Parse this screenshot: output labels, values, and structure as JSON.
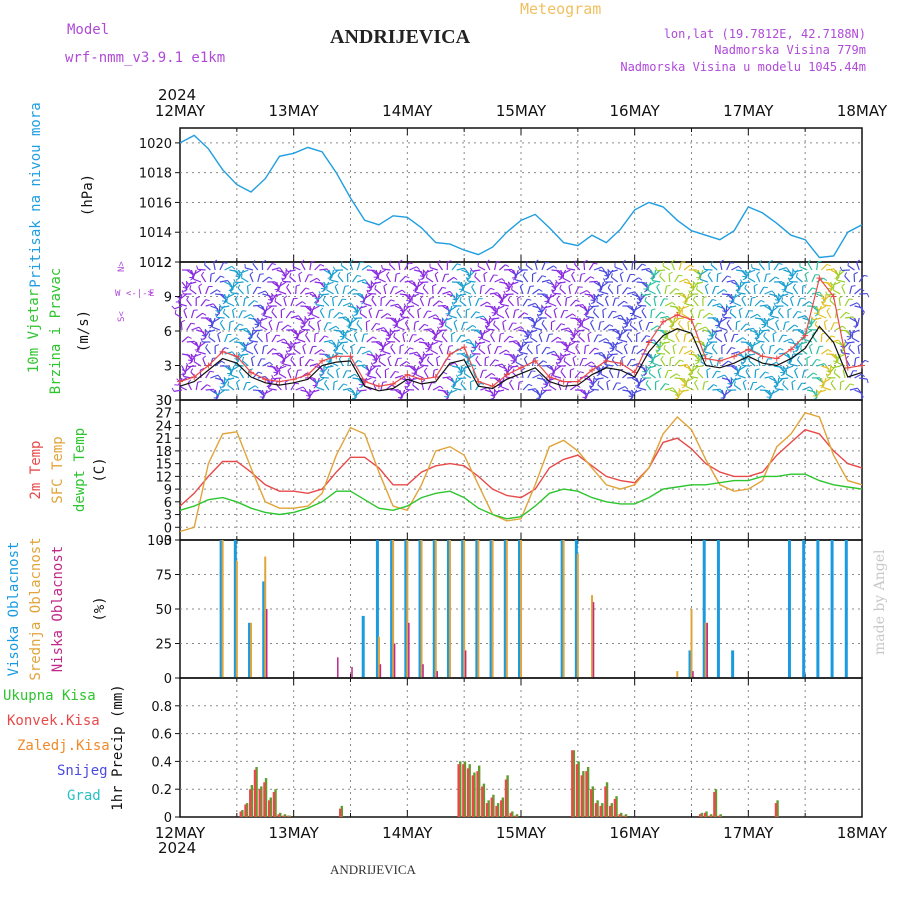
{
  "header": {
    "model_label": "Model",
    "model_name": "wrf-nmm_v3.9.1 e1km",
    "title": "ANDRIJEVICA",
    "subtitle": "Meteogram",
    "location": "lon,lat (19.7812E, 42.7188N)",
    "elevation": "Nadmorska Visina 779m",
    "model_elevation": "Nadmorska Visina u modelu 1045.44m",
    "watermark": "made by Angel"
  },
  "footer": {
    "station": "ANDRIJEVICA"
  },
  "time_axis": {
    "year": "2024",
    "days": [
      "12MAY",
      "13MAY",
      "14MAY",
      "15MAY",
      "16MAY",
      "17MAY",
      "18MAY"
    ]
  },
  "colors": {
    "pressure": "#1f9ee0",
    "temp_2m": "#e84a4a",
    "temp_sfc": "#e0a43a",
    "temp_dew": "#2ec52e",
    "cloud_high": "#1a9be0",
    "cloud_mid": "#e0a43a",
    "cloud_low": "#c0288a",
    "precip_total": "#5c9e2e",
    "precip_conv": "#e84a4a",
    "wind_speed": "#111111",
    "wind_gust": "#e84a4a"
  },
  "chart_data": [
    {
      "id": "pressure",
      "type": "line",
      "ylabel": [
        "Pritisak na nivou mora",
        "(hPa)"
      ],
      "ylim": [
        1012,
        1021
      ],
      "yticks": [
        1012,
        1014,
        1016,
        1018,
        1020
      ],
      "grid": true,
      "x_hours": [
        0,
        3,
        6,
        9,
        12,
        15,
        18,
        21,
        24,
        27,
        30,
        33,
        36,
        39,
        42,
        45,
        48,
        51,
        54,
        57,
        60,
        63,
        66,
        69,
        72,
        75,
        78,
        81,
        84,
        87,
        90,
        93,
        96,
        99,
        102,
        105,
        108,
        111,
        114,
        117,
        120,
        123,
        126,
        129,
        132,
        135,
        138,
        141,
        144
      ],
      "series": [
        {
          "name": "Pritisak na nivou mora",
          "values": [
            1020.0,
            1020.5,
            1019.6,
            1018.2,
            1017.2,
            1016.7,
            1017.6,
            1019.1,
            1019.3,
            1019.7,
            1019.4,
            1018.0,
            1016.3,
            1014.8,
            1014.5,
            1015.1,
            1015.0,
            1014.3,
            1013.3,
            1013.2,
            1012.8,
            1012.5,
            1013.0,
            1014.0,
            1014.8,
            1015.2,
            1014.3,
            1013.3,
            1013.1,
            1013.8,
            1013.3,
            1014.2,
            1015.5,
            1016.0,
            1015.7,
            1014.8,
            1014.1,
            1013.8,
            1013.5,
            1014.1,
            1015.7,
            1015.3,
            1014.6,
            1013.8,
            1013.5,
            1012.3,
            1012.4,
            1014.0,
            1014.5
          ]
        }
      ]
    },
    {
      "id": "wind",
      "type": "line",
      "ylabel": [
        "10m Vjetar",
        "Brzina i Pravac",
        "(m/s)"
      ],
      "ylim": [
        0,
        12
      ],
      "yticks": [
        0,
        3,
        6,
        9,
        12
      ],
      "grid": true,
      "x_hours": [
        0,
        3,
        6,
        9,
        12,
        15,
        18,
        21,
        24,
        27,
        30,
        33,
        36,
        39,
        42,
        45,
        48,
        51,
        54,
        57,
        60,
        63,
        66,
        69,
        72,
        75,
        78,
        81,
        84,
        87,
        90,
        93,
        96,
        99,
        102,
        105,
        108,
        111,
        114,
        117,
        120,
        123,
        126,
        129,
        132,
        135,
        138,
        141,
        144
      ],
      "series": [
        {
          "name": "speed",
          "values": [
            1.2,
            1.6,
            2.6,
            3.6,
            3.2,
            2.0,
            1.5,
            1.3,
            1.5,
            1.8,
            3.0,
            3.3,
            3.4,
            1.2,
            0.8,
            1.0,
            1.8,
            1.4,
            1.6,
            3.2,
            3.5,
            1.2,
            1.0,
            1.8,
            2.3,
            2.8,
            1.6,
            1.2,
            1.3,
            2.2,
            2.8,
            2.6,
            2.0,
            4.2,
            5.6,
            6.2,
            5.8,
            3.0,
            2.8,
            3.2,
            3.8,
            3.2,
            3.0,
            3.6,
            4.5,
            6.4,
            5.0,
            2.0,
            2.4
          ]
        },
        {
          "name": "gust",
          "values": [
            1.6,
            2.0,
            3.0,
            4.2,
            3.8,
            2.4,
            1.8,
            1.6,
            1.8,
            2.2,
            3.4,
            3.8,
            3.8,
            1.6,
            1.2,
            1.4,
            2.2,
            1.8,
            2.0,
            4.0,
            4.6,
            1.6,
            1.2,
            2.2,
            2.8,
            3.4,
            2.0,
            1.6,
            1.6,
            2.6,
            3.4,
            3.2,
            2.4,
            5.0,
            6.8,
            7.4,
            7.0,
            3.6,
            3.4,
            3.8,
            4.4,
            3.8,
            3.6,
            4.4,
            5.6,
            10.6,
            9.0,
            2.8,
            3.0
          ]
        }
      ]
    },
    {
      "id": "temperature",
      "type": "line",
      "ylabel": [
        "2m Temp",
        "SFC Temp",
        "dewpt Temp",
        "(C)"
      ],
      "ylim": [
        -3,
        30
      ],
      "yticks": [
        -3,
        0,
        3,
        6,
        9,
        12,
        15,
        18,
        21,
        24,
        27,
        30
      ],
      "grid": true,
      "x_hours": [
        0,
        3,
        6,
        9,
        12,
        15,
        18,
        21,
        24,
        27,
        30,
        33,
        36,
        39,
        42,
        45,
        48,
        51,
        54,
        57,
        60,
        63,
        66,
        69,
        72,
        75,
        78,
        81,
        84,
        87,
        90,
        93,
        96,
        99,
        102,
        105,
        108,
        111,
        114,
        117,
        120,
        123,
        126,
        129,
        132,
        135,
        138,
        141,
        144
      ],
      "series": [
        {
          "name": "2m Temp",
          "values": [
            5,
            8,
            12,
            15.5,
            15.5,
            13,
            10,
            8.5,
            8.5,
            8,
            9,
            13,
            16.5,
            16.5,
            14,
            10,
            10,
            13,
            14.5,
            15,
            14.5,
            12,
            9,
            7.5,
            7,
            9,
            14,
            16,
            17,
            14.5,
            12,
            11,
            10.5,
            14,
            20,
            21,
            18.5,
            15,
            13,
            12,
            12,
            13,
            17,
            20,
            23,
            22,
            18,
            15,
            14
          ]
        },
        {
          "name": "SFC Temp",
          "values": [
            -1,
            0,
            15,
            22,
            22.5,
            14,
            6,
            4.5,
            4.5,
            5,
            8,
            17,
            23.5,
            22,
            13,
            5,
            4,
            10,
            18,
            19,
            17,
            10,
            3,
            1.5,
            2,
            10,
            19,
            20.5,
            18,
            14,
            10,
            9,
            10,
            14,
            22,
            26,
            23,
            16,
            10,
            8.5,
            9,
            11,
            19,
            22,
            27,
            26,
            17,
            11,
            10
          ]
        },
        {
          "name": "dewpt Temp",
          "values": [
            4,
            5,
            6.5,
            7,
            6,
            4.5,
            3.5,
            3,
            3.5,
            4.5,
            6,
            8.5,
            8.5,
            6.5,
            4.5,
            4,
            5,
            7,
            8,
            8.5,
            7,
            4.5,
            3,
            2,
            2.5,
            5,
            8,
            9,
            8.5,
            7,
            6,
            5.5,
            5.5,
            7,
            9,
            9.5,
            10,
            10,
            10.5,
            11,
            11,
            12,
            12,
            12.5,
            12.5,
            11,
            10,
            9.5,
            9
          ]
        }
      ]
    },
    {
      "id": "clouds",
      "type": "bar",
      "ylabel": [
        "Visoka Oblacnost",
        "Srednja Oblacnost",
        "Niska Oblacnost",
        "(%)"
      ],
      "ylim": [
        0,
        100
      ],
      "yticks": [
        0,
        25,
        50,
        75,
        100
      ],
      "grid": true,
      "x_hours": [
        0,
        3,
        6,
        9,
        12,
        15,
        18,
        21,
        24,
        27,
        30,
        33,
        36,
        39,
        42,
        45,
        48,
        51,
        54,
        57,
        60,
        63,
        66,
        69,
        72,
        75,
        78,
        81,
        84,
        87,
        90,
        93,
        96,
        99,
        102,
        105,
        108,
        111,
        114,
        117,
        120,
        123,
        126,
        129,
        132,
        135,
        138,
        141,
        144
      ],
      "series": [
        {
          "name": "Visoka Oblacnost",
          "values": [
            0,
            0,
            0,
            100,
            100,
            40,
            70,
            0,
            0,
            0,
            0,
            0,
            0,
            45,
            100,
            100,
            100,
            100,
            100,
            100,
            100,
            100,
            100,
            100,
            100,
            0,
            0,
            100,
            100,
            0,
            0,
            0,
            0,
            0,
            0,
            0,
            20,
            100,
            100,
            20,
            0,
            0,
            0,
            100,
            100,
            100,
            100,
            100,
            0
          ]
        },
        {
          "name": "Srednja Oblacnost",
          "values": [
            0,
            0,
            0,
            100,
            85,
            40,
            88,
            0,
            0,
            0,
            0,
            0,
            0,
            0,
            30,
            100,
            100,
            100,
            100,
            100,
            100,
            100,
            100,
            100,
            100,
            0,
            0,
            100,
            90,
            60,
            0,
            0,
            0,
            0,
            0,
            5,
            50,
            40,
            0,
            0,
            0,
            0,
            0,
            0,
            0,
            0,
            0,
            0,
            0
          ]
        },
        {
          "name": "Niska Oblacnost",
          "values": [
            0,
            0,
            0,
            0,
            0,
            0,
            50,
            0,
            0,
            0,
            0,
            15,
            8,
            0,
            10,
            25,
            40,
            10,
            5,
            0,
            20,
            0,
            0,
            0,
            0,
            0,
            0,
            0,
            0,
            55,
            0,
            0,
            0,
            0,
            0,
            0,
            5,
            40,
            0,
            0,
            0,
            0,
            0,
            0,
            0,
            0,
            0,
            0,
            0
          ]
        }
      ]
    },
    {
      "id": "precip",
      "type": "bar",
      "ylabel": [
        "Ukupna Kisa",
        "Konvek.Kisa",
        "Zaledj.Kisa",
        "Snijeg",
        "Grad",
        "1hr Precip (mm)"
      ],
      "ylim": [
        0,
        1.0
      ],
      "yticks": [
        0,
        0.2,
        0.4,
        0.6,
        0.8
      ],
      "grid": true,
      "x_hours": [
        13,
        14,
        15,
        16,
        17,
        18,
        19,
        20,
        21,
        22,
        23,
        34,
        59,
        60,
        61,
        62,
        63,
        64,
        65,
        66,
        67,
        68,
        69,
        70,
        71,
        83,
        84,
        85,
        86,
        87,
        88,
        89,
        90,
        91,
        92,
        93,
        94,
        110,
        111,
        112,
        113,
        114,
        126
      ],
      "series": [
        {
          "name": "Ukupna Kisa",
          "values": [
            0.05,
            0.1,
            0.23,
            0.36,
            0.22,
            0.28,
            0.14,
            0.2,
            0.03,
            0.02,
            0.01,
            0.08,
            0.4,
            0.4,
            0.38,
            0.32,
            0.37,
            0.24,
            0.12,
            0.16,
            0.1,
            0.14,
            0.3,
            0.04,
            0.02,
            0.48,
            0.4,
            0.33,
            0.36,
            0.22,
            0.12,
            0.1,
            0.25,
            0.1,
            0.15,
            0.03,
            0.02,
            0.03,
            0.04,
            0.02,
            0.2,
            0.02,
            0.12
          ]
        },
        {
          "name": "Konvek.Kisa",
          "values": [
            0.04,
            0.09,
            0.2,
            0.34,
            0.2,
            0.25,
            0.12,
            0.18,
            0.02,
            0.01,
            0.01,
            0.06,
            0.38,
            0.38,
            0.35,
            0.3,
            0.33,
            0.22,
            0.1,
            0.14,
            0.08,
            0.12,
            0.27,
            0.03,
            0.01,
            0.48,
            0.38,
            0.3,
            0.33,
            0.2,
            0.1,
            0.08,
            0.22,
            0.08,
            0.13,
            0.02,
            0.01,
            0.02,
            0.03,
            0.01,
            0.18,
            0.01,
            0.1
          ]
        }
      ]
    }
  ]
}
